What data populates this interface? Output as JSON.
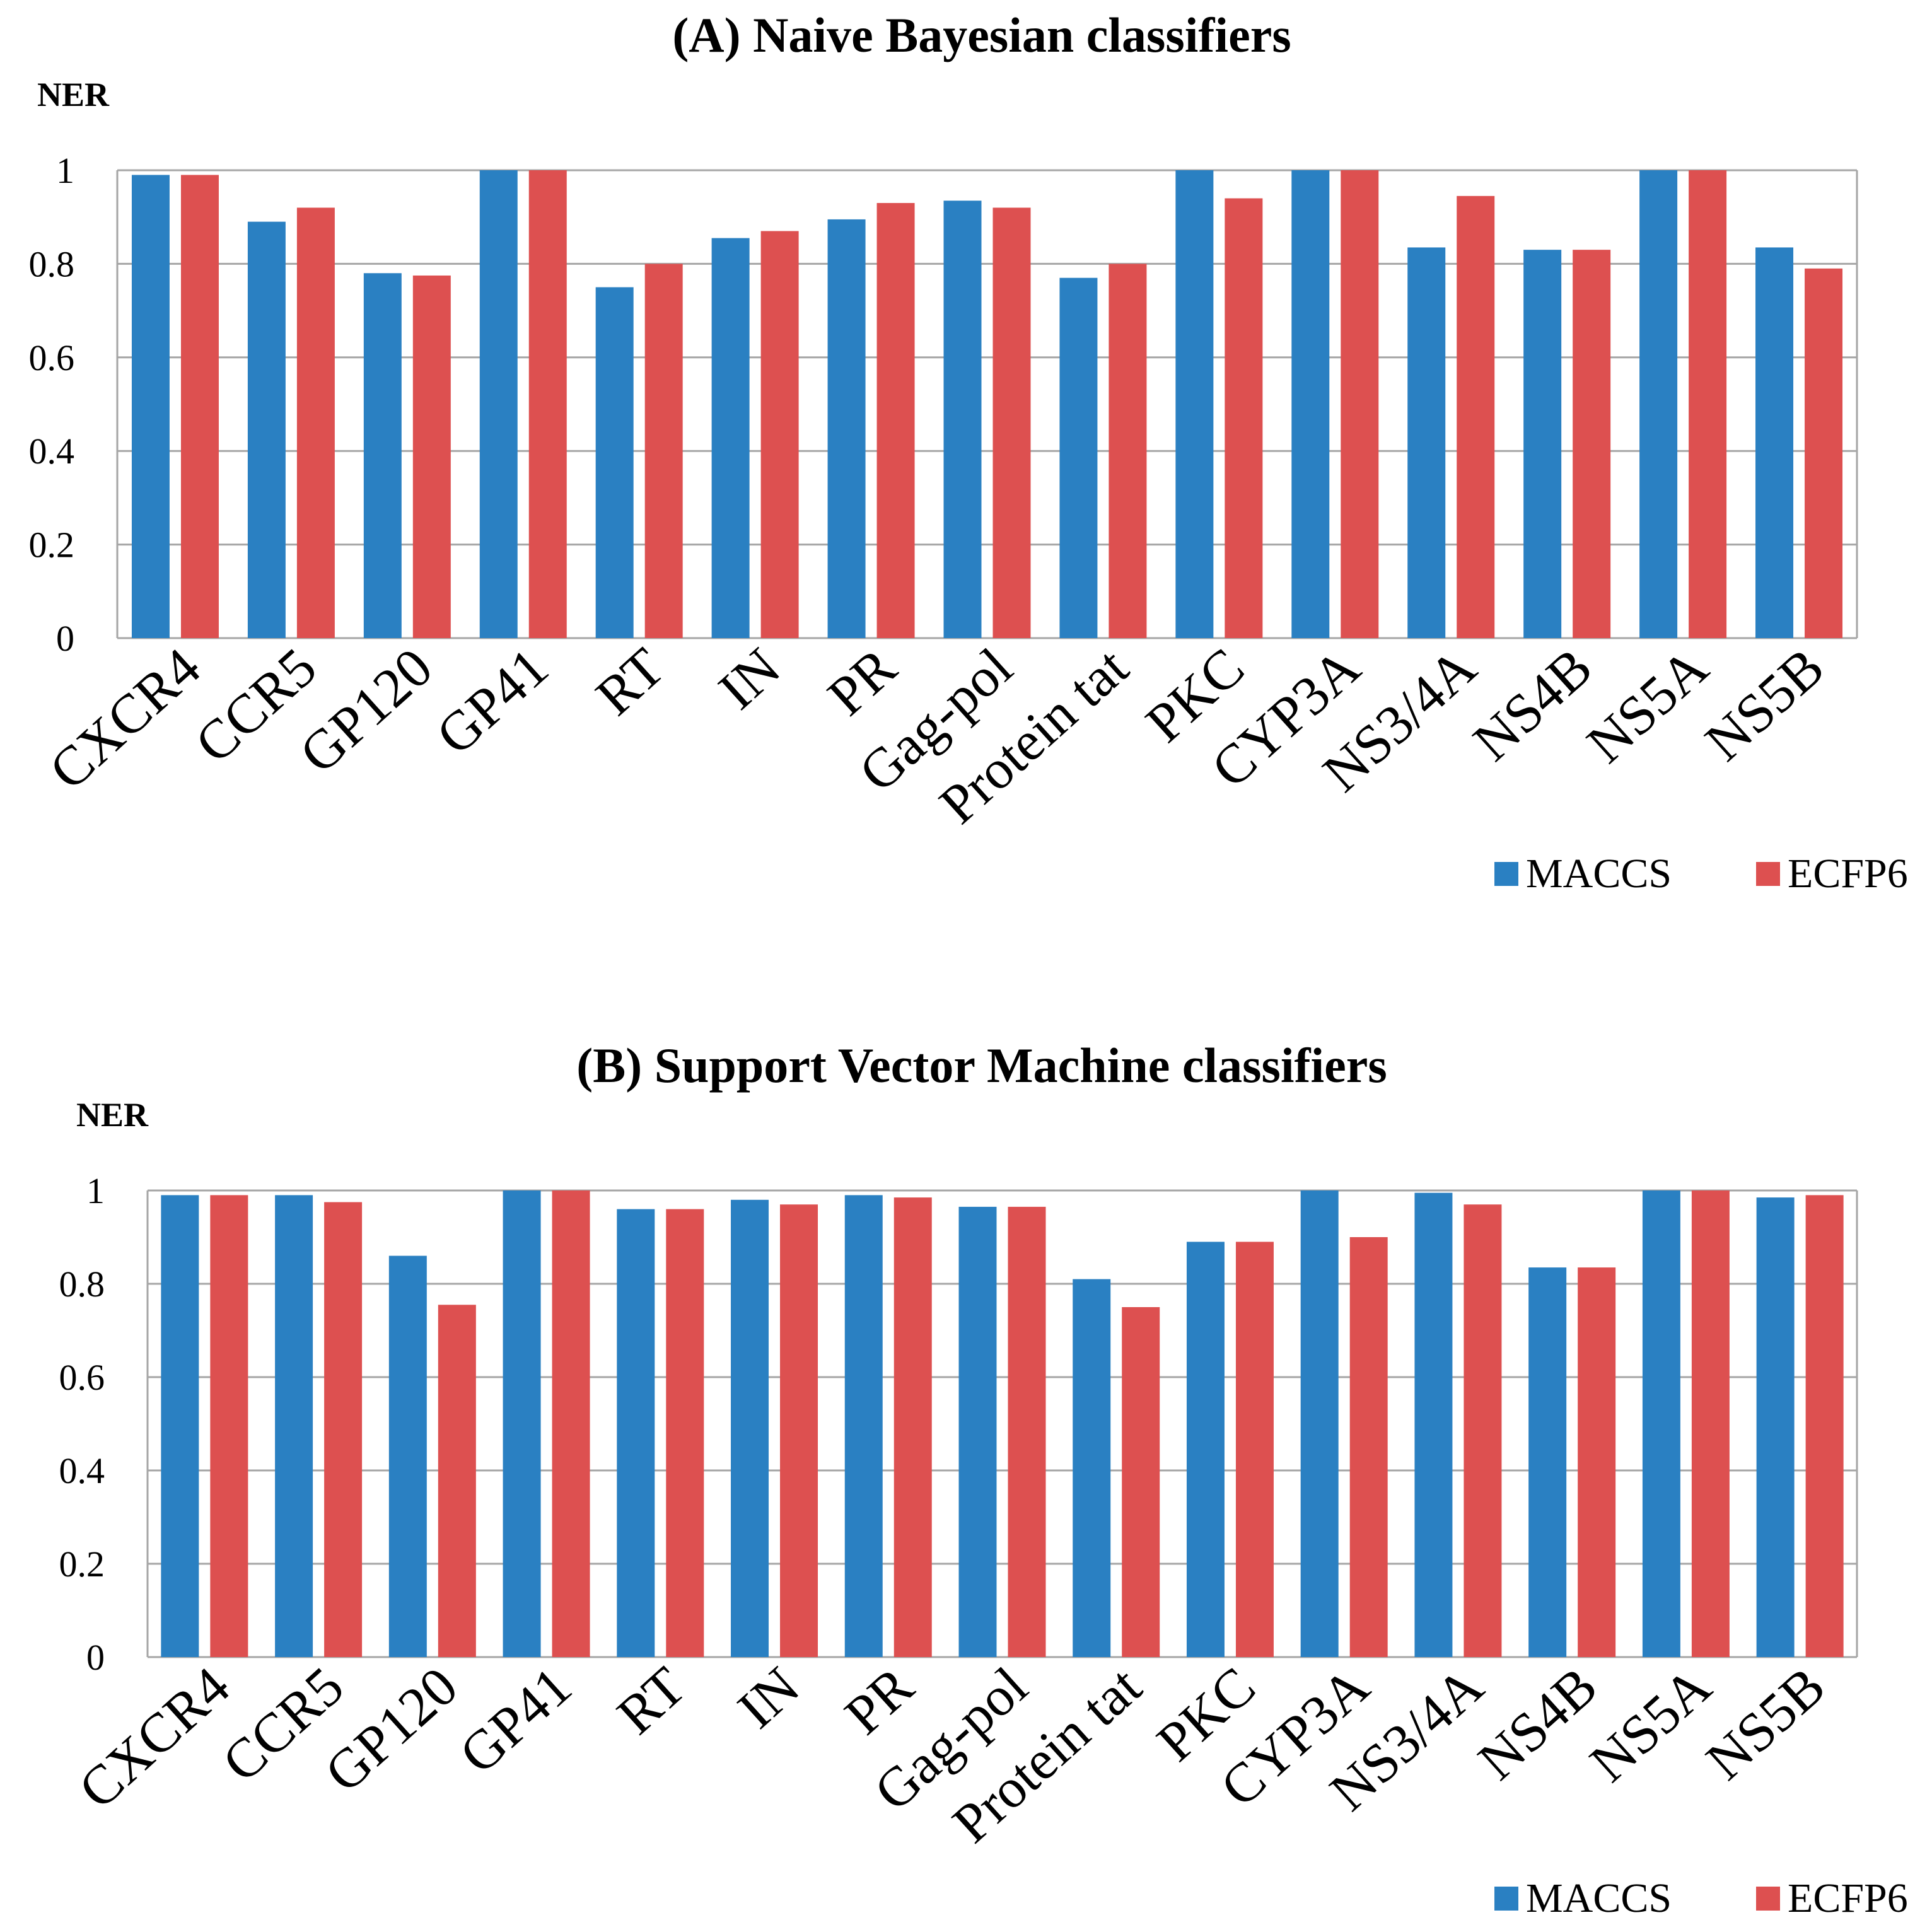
{
  "chart_data": [
    {
      "type": "bar",
      "title": "(A) Naive Bayesian classifiers",
      "ylabel": "NER",
      "xlabel": "",
      "ylim": [
        0,
        1
      ],
      "yticks": [
        "0",
        "0.2",
        "0.4",
        "0.6",
        "0.8",
        "1"
      ],
      "categories": [
        "CXCR4",
        "CCR5",
        "GP120",
        "GP41",
        "RT",
        "IN",
        "PR",
        "Gag-pol",
        "Protein tat",
        "PKC",
        "CYP3A",
        "NS3/4A",
        "NS4B",
        "NS5A",
        "NS5B"
      ],
      "series": [
        {
          "name": "MACCS",
          "color": "#2a80c2",
          "values": [
            0.99,
            0.89,
            0.78,
            1.0,
            0.75,
            0.855,
            0.895,
            0.935,
            0.77,
            1.0,
            1.0,
            0.835,
            0.83,
            1.0,
            0.835
          ]
        },
        {
          "name": "ECFP6",
          "color": "#dd5050",
          "values": [
            0.99,
            0.92,
            0.775,
            1.0,
            0.8,
            0.87,
            0.93,
            0.92,
            0.8,
            0.94,
            1.0,
            0.945,
            0.83,
            1.0,
            0.79
          ]
        }
      ],
      "legend": "bottom-right"
    },
    {
      "type": "bar",
      "title": "(B) Support Vector Machine classifiers",
      "ylabel": "NER",
      "xlabel": "",
      "ylim": [
        0,
        1
      ],
      "yticks": [
        "0",
        "0.2",
        "0.4",
        "0.6",
        "0.8",
        "1"
      ],
      "categories": [
        "CXCR4",
        "CCR5",
        "GP120",
        "GP41",
        "RT",
        "IN",
        "PR",
        "Gag-pol",
        "Protein tat",
        "PKC",
        "CYP3A",
        "NS3/4A",
        "NS4B",
        "NS5A",
        "NS5B"
      ],
      "series": [
        {
          "name": "MACCS",
          "color": "#2a80c2",
          "values": [
            0.99,
            0.99,
            0.86,
            1.0,
            0.96,
            0.98,
            0.99,
            0.965,
            0.81,
            0.89,
            1.0,
            0.995,
            0.835,
            1.0,
            0.985
          ]
        },
        {
          "name": "ECFP6",
          "color": "#dd5050",
          "values": [
            0.99,
            0.975,
            0.755,
            1.0,
            0.96,
            0.97,
            0.985,
            0.965,
            0.75,
            0.89,
            0.9,
            0.97,
            0.835,
            1.0,
            0.99
          ]
        }
      ],
      "legend": "bottom-right"
    }
  ]
}
